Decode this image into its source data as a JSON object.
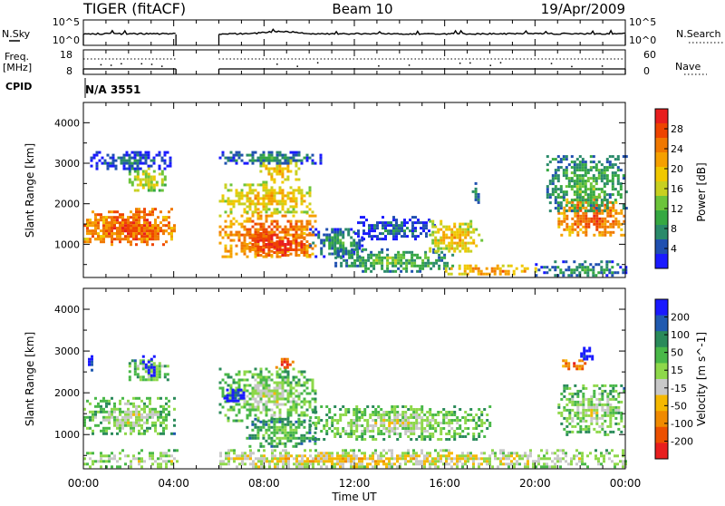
{
  "header": {
    "title": "TIGER (fitACF)",
    "beam": "Beam 10",
    "date": "19/Apr/2009"
  },
  "status_panel": {
    "nsky_label": "N.Sky",
    "nsearch_label": "N.Search",
    "nsky_ticks": [
      "10^5",
      "10^0"
    ],
    "nsearch_ticks": [
      "10^5",
      "10^0"
    ],
    "freq_label_top": "Freq.",
    "freq_label_bottom": "[MHz]",
    "freq_ticks": [
      "18",
      "8"
    ],
    "nave_label": "Nave",
    "nave_ticks": [
      "60",
      "0"
    ],
    "cpid_label": "CPID",
    "cpid_value": "N/A 3551"
  },
  "chart_data": [
    {
      "type": "heatmap",
      "name": "power",
      "ylabel": "Slant Range [km]",
      "xlabel": "",
      "x_ticks": [
        "00:00",
        "04:00",
        "08:00",
        "12:00",
        "16:00",
        "20:00",
        "00:00"
      ],
      "y_ticks": [
        1000,
        2000,
        3000,
        4000
      ],
      "xlim_hours": [
        0,
        24
      ],
      "ylim_km": [
        180,
        4500
      ],
      "data_gap_hours": [
        4.1,
        6.0
      ],
      "colorbar": {
        "label": "Power [dB]",
        "ticks": [
          "4",
          "8",
          "12",
          "16",
          "20",
          "24",
          "28"
        ],
        "colors": [
          "#1a1aff",
          "#2050b0",
          "#2a8a6a",
          "#36a842",
          "#6cc43a",
          "#c8d020",
          "#f0c800",
          "#f5a000",
          "#f07800",
          "#ee4400",
          "#e81e1e"
        ]
      },
      "regions": [
        {
          "t0": 0.0,
          "t1": 4.0,
          "r0": 1000,
          "r1": 1900,
          "level": 10
        },
        {
          "t0": 0.0,
          "t1": 4.0,
          "r0": 1100,
          "r1": 1700,
          "level": 9
        },
        {
          "t0": 2.0,
          "t1": 3.6,
          "r0": 2300,
          "r1": 2900,
          "level": 6
        },
        {
          "t0": 0.3,
          "t1": 3.8,
          "r0": 2850,
          "r1": 3300,
          "level": 2
        },
        {
          "t0": 6.0,
          "t1": 10.3,
          "r0": 700,
          "r1": 1800,
          "level": 9
        },
        {
          "t0": 7.2,
          "t1": 10.0,
          "r0": 700,
          "r1": 1300,
          "level": 10
        },
        {
          "t0": 6.0,
          "t1": 10.2,
          "r0": 1800,
          "r1": 2500,
          "level": 7
        },
        {
          "t0": 7.8,
          "t1": 9.5,
          "r0": 2500,
          "r1": 3100,
          "level": 7
        },
        {
          "t0": 6.0,
          "t1": 10.5,
          "r0": 3000,
          "r1": 3300,
          "level": 3
        },
        {
          "t0": 10.0,
          "t1": 12.4,
          "r0": 700,
          "r1": 1400,
          "level": 3
        },
        {
          "t0": 11.0,
          "t1": 16.4,
          "r0": 350,
          "r1": 900,
          "level": 4
        },
        {
          "t0": 12.0,
          "t1": 15.5,
          "r0": 1100,
          "r1": 1700,
          "level": 2
        },
        {
          "t0": 15.3,
          "t1": 17.6,
          "r0": 800,
          "r1": 1600,
          "level": 7
        },
        {
          "t0": 16.0,
          "t1": 20.0,
          "r0": 250,
          "r1": 500,
          "level": 8
        },
        {
          "t0": 17.2,
          "t1": 17.5,
          "r0": 2000,
          "r1": 2600,
          "level": 3
        },
        {
          "t0": 21.0,
          "t1": 24.0,
          "r0": 1200,
          "r1": 2200,
          "level": 9
        },
        {
          "t0": 20.5,
          "t1": 24.0,
          "r0": 1800,
          "r1": 3200,
          "level": 4
        },
        {
          "t0": 20.0,
          "t1": 24.0,
          "r0": 200,
          "r1": 600,
          "level": 3
        }
      ]
    },
    {
      "type": "heatmap",
      "name": "velocity",
      "ylabel": "Slant Range [km]",
      "xlabel": "Time UT",
      "x_ticks": [
        "00:00",
        "04:00",
        "08:00",
        "12:00",
        "16:00",
        "20:00",
        "00:00"
      ],
      "y_ticks": [
        1000,
        2000,
        3000,
        4000
      ],
      "xlim_hours": [
        0,
        24
      ],
      "ylim_km": [
        180,
        4500
      ],
      "data_gap_hours": [
        4.1,
        6.0
      ],
      "colorbar": {
        "label": "Velocity [m s^-1]",
        "ticks": [
          "200",
          "100",
          "50",
          "15",
          "-15",
          "-50",
          "-100",
          "-200"
        ],
        "colors": [
          "#1a1aff",
          "#205ab0",
          "#2a8a5a",
          "#49b848",
          "#8ed84a",
          "#c8c8c8",
          "#f5b800",
          "#f08a00",
          "#ec5000",
          "#e81e1e"
        ]
      },
      "regions": [
        {
          "t0": 0.0,
          "t1": 4.0,
          "r0": 1000,
          "r1": 1900,
          "level": 5
        },
        {
          "t0": 2.0,
          "t1": 3.8,
          "r0": 2300,
          "r1": 2800,
          "level": 5
        },
        {
          "t0": 2.6,
          "t1": 3.2,
          "r0": 2400,
          "r1": 2900,
          "level": 1
        },
        {
          "t0": 0.2,
          "t1": 0.4,
          "r0": 2500,
          "r1": 2900,
          "level": 1
        },
        {
          "t0": 6.0,
          "t1": 10.3,
          "r0": 1300,
          "r1": 2600,
          "level": 5
        },
        {
          "t0": 7.2,
          "t1": 10.3,
          "r0": 700,
          "r1": 1400,
          "level": 4
        },
        {
          "t0": 6.2,
          "t1": 7.2,
          "r0": 1800,
          "r1": 2100,
          "level": 1
        },
        {
          "t0": 8.5,
          "t1": 9.3,
          "r0": 2600,
          "r1": 2900,
          "level": 9
        },
        {
          "t0": 10.0,
          "t1": 18.0,
          "r0": 900,
          "r1": 1700,
          "level": 5
        },
        {
          "t0": 0.0,
          "t1": 24.0,
          "r0": 200,
          "r1": 650,
          "level": 6
        },
        {
          "t0": 21.0,
          "t1": 24.0,
          "r0": 1000,
          "r1": 2200,
          "level": 5
        },
        {
          "t0": 21.2,
          "t1": 22.2,
          "r0": 2600,
          "r1": 2800,
          "level": 9
        },
        {
          "t0": 22.0,
          "t1": 22.5,
          "r0": 2800,
          "r1": 3100,
          "level": 1
        }
      ]
    }
  ]
}
